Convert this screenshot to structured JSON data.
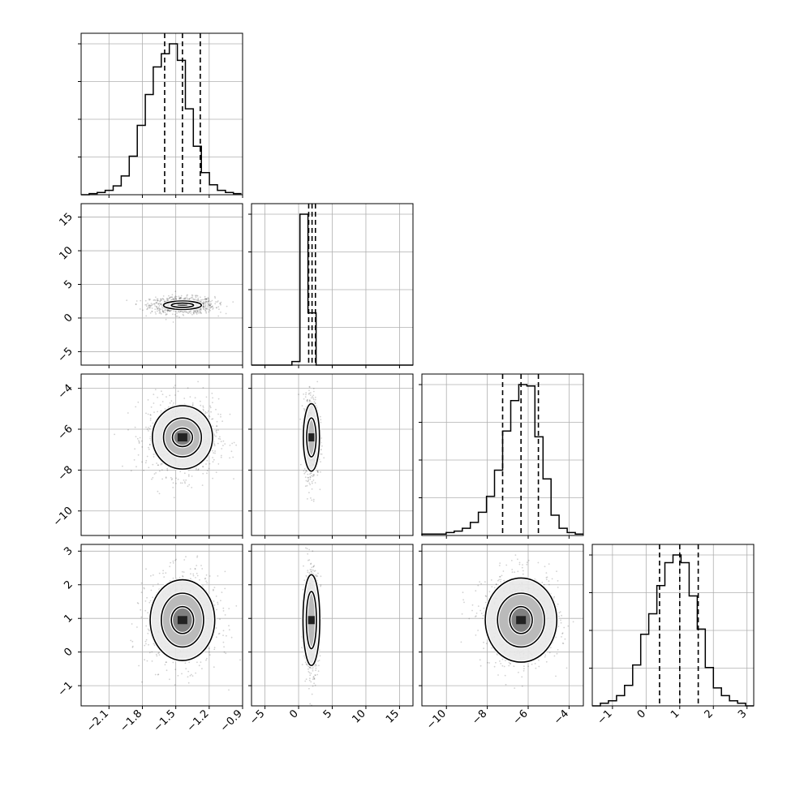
{
  "chart_data": {
    "type": "corner",
    "grid": true,
    "params": [
      {
        "range": [
          -2.35,
          -0.9
        ],
        "ticks": [
          -2.1,
          -1.8,
          -1.5,
          -1.2,
          -0.9
        ],
        "tick_labels": [
          "−2.1",
          "−1.8",
          "−1.5",
          "−1.2",
          "−0.9"
        ],
        "quantiles": [
          -1.6,
          -1.44,
          -1.28
        ],
        "hist_bins": {
          "start": -2.35,
          "width": 0.072,
          "counts": [
            0,
            1,
            2,
            4,
            8,
            17,
            35,
            63,
            91,
            116,
            128,
            137,
            122,
            78,
            44,
            20,
            9,
            4,
            2,
            1
          ]
        }
      },
      {
        "range": [
          -7,
          17
        ],
        "ticks": [
          -5,
          0,
          5,
          10,
          15
        ],
        "tick_labels": [
          "−5",
          "0",
          "5",
          "10",
          "15"
        ],
        "quantiles": [
          1.5,
          2.0,
          2.5
        ],
        "hist_bins": {
          "start": -7,
          "width": 1.2,
          "counts": [
            0,
            0,
            0,
            0,
            0,
            3,
            127,
            44,
            0,
            0,
            0,
            0,
            0,
            0,
            0,
            0,
            0,
            0,
            0,
            0
          ]
        }
      },
      {
        "range": [
          -11.2,
          -3.3
        ],
        "ticks": [
          -10,
          -8,
          -6,
          -4
        ],
        "tick_labels": [
          "−10",
          "−8",
          "−6",
          "−4"
        ],
        "quantiles": [
          -7.25,
          -6.35,
          -5.5
        ],
        "hist_bins": {
          "start": -11.2,
          "width": 0.395,
          "counts": [
            1,
            1,
            1,
            2,
            3,
            5,
            9,
            16,
            27,
            45,
            72,
            93,
            104,
            103,
            68,
            39,
            14,
            5,
            2,
            1
          ]
        }
      },
      {
        "range": [
          -1.6,
          3.2
        ],
        "ticks": [
          -1,
          0,
          1,
          2,
          3
        ],
        "tick_labels": [
          "−1",
          "0",
          "1",
          "2",
          "3"
        ],
        "quantiles": [
          0.4,
          1.0,
          1.55
        ],
        "hist_bins": {
          "start": -1.6,
          "width": 0.24,
          "counts": [
            0,
            1,
            2,
            4,
            8,
            16,
            28,
            36,
            47,
            56,
            59,
            56,
            43,
            30,
            15,
            7,
            4,
            2,
            1,
            0
          ]
        }
      }
    ],
    "pairs": [
      {
        "row": 1,
        "col": 0,
        "center": [
          -1.44,
          1.9
        ],
        "sd": [
          0.115,
          0.5
        ],
        "levels": [
          [
            0.17,
            0.62
          ],
          [
            0.1,
            0.32
          ]
        ]
      },
      {
        "row": 2,
        "col": 0,
        "center": [
          -1.44,
          -6.4
        ],
        "sd": [
          0.13,
          0.75
        ],
        "levels": [
          [
            0.27,
            1.55
          ],
          [
            0.17,
            0.95
          ],
          [
            0.09,
            0.45
          ]
        ]
      },
      {
        "row": 2,
        "col": 1,
        "center": [
          1.9,
          -6.4
        ],
        "sd": [
          0.45,
          0.8
        ],
        "levels": [
          [
            1.2,
            1.65
          ],
          [
            0.7,
            0.95
          ]
        ]
      },
      {
        "row": 3,
        "col": 0,
        "center": [
          -1.44,
          0.95
        ],
        "sd": [
          0.13,
          0.55
        ],
        "levels": [
          [
            0.29,
            1.2
          ],
          [
            0.19,
            0.8
          ],
          [
            0.1,
            0.4
          ]
        ]
      },
      {
        "row": 3,
        "col": 1,
        "center": [
          1.9,
          0.95
        ],
        "sd": [
          0.45,
          0.6
        ],
        "levels": [
          [
            1.25,
            1.35
          ],
          [
            0.75,
            0.85
          ]
        ]
      },
      {
        "row": 3,
        "col": 2,
        "center": [
          -6.35,
          0.95
        ],
        "sd": [
          0.75,
          0.55
        ],
        "levels": [
          [
            1.75,
            1.25
          ],
          [
            1.15,
            0.8
          ],
          [
            0.55,
            0.4
          ]
        ]
      }
    ]
  }
}
